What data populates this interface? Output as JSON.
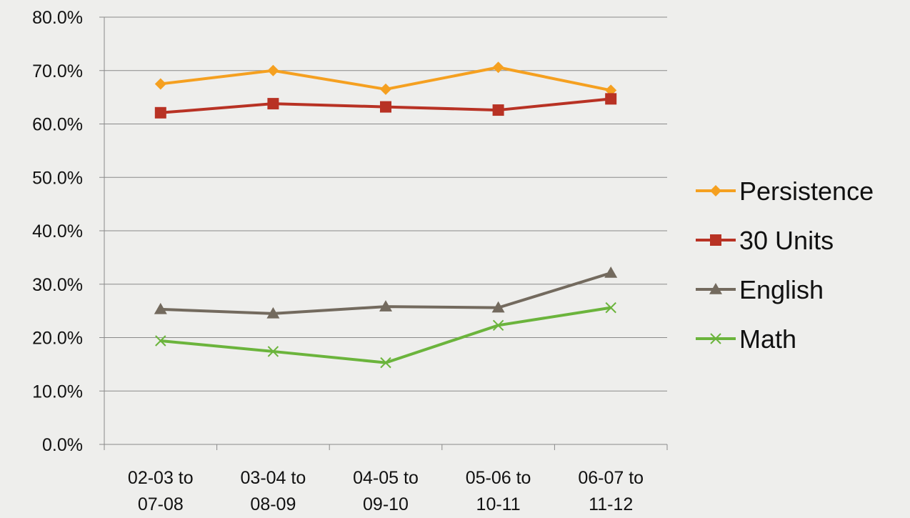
{
  "chart_data": {
    "type": "line",
    "title": "",
    "xlabel": "",
    "ylabel": "",
    "categories": [
      [
        "02-03 to",
        "07-08"
      ],
      [
        "03-04 to",
        "08-09"
      ],
      [
        "04-05 to",
        "09-10"
      ],
      [
        "05-06 to",
        "10-11"
      ],
      [
        "06-07 to",
        "11-12"
      ]
    ],
    "y_ticks": [
      "0.0%",
      "10.0%",
      "20.0%",
      "30.0%",
      "40.0%",
      "50.0%",
      "60.0%",
      "70.0%",
      "80.0%"
    ],
    "ylim": [
      0,
      80
    ],
    "grid": "horizontal",
    "legend_position": "right",
    "series": [
      {
        "name": "Persistence",
        "marker": "diamond",
        "color": "#f5a020",
        "values": [
          67.5,
          70.0,
          66.5,
          70.6,
          66.3
        ]
      },
      {
        "name": "30 Units",
        "marker": "square",
        "color": "#b83224",
        "values": [
          62.1,
          63.8,
          63.2,
          62.6,
          64.7
        ]
      },
      {
        "name": "English",
        "marker": "triangle",
        "color": "#736a5e",
        "values": [
          25.3,
          24.5,
          25.8,
          25.6,
          32.1
        ]
      },
      {
        "name": "Math",
        "marker": "x",
        "color": "#6bb43c",
        "values": [
          19.4,
          17.4,
          15.3,
          22.3,
          25.6
        ]
      }
    ]
  }
}
